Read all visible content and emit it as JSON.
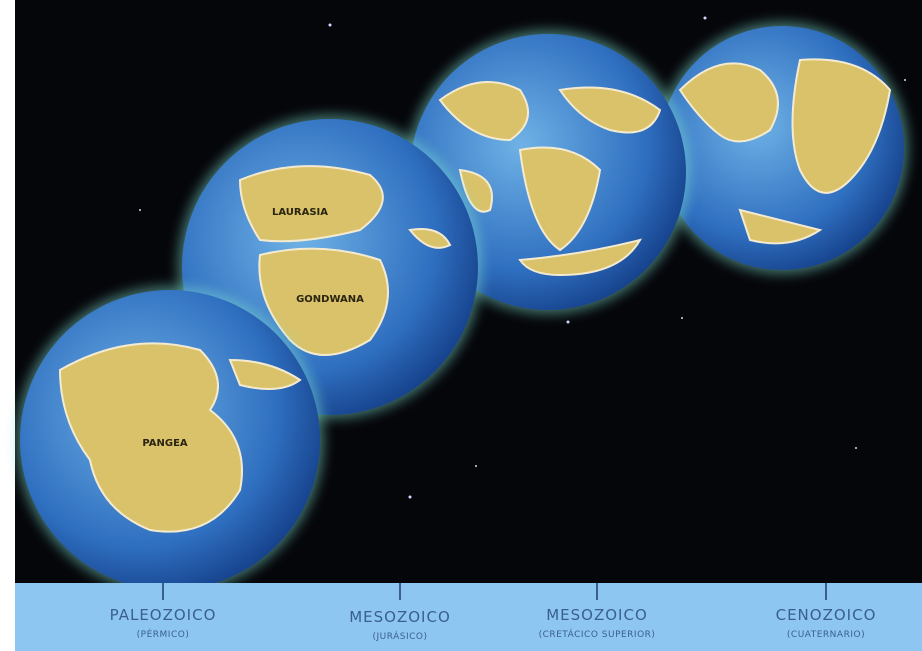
{
  "globes": [
    {
      "label": "PANGEA"
    },
    {
      "label": "LAURASIA"
    },
    {
      "label": "GONDWANA"
    }
  ],
  "eras": [
    {
      "name": "PALEOZOICO",
      "period": "(PÉRMICO)"
    },
    {
      "name": "MESOZOICO",
      "period": "(JURÁSICO)"
    },
    {
      "name": "MESOZOICO",
      "period": "(CRETÁCICO SUPERIOR)"
    },
    {
      "name": "CENOZOICO",
      "period": "(CUATERNARIO)"
    }
  ]
}
